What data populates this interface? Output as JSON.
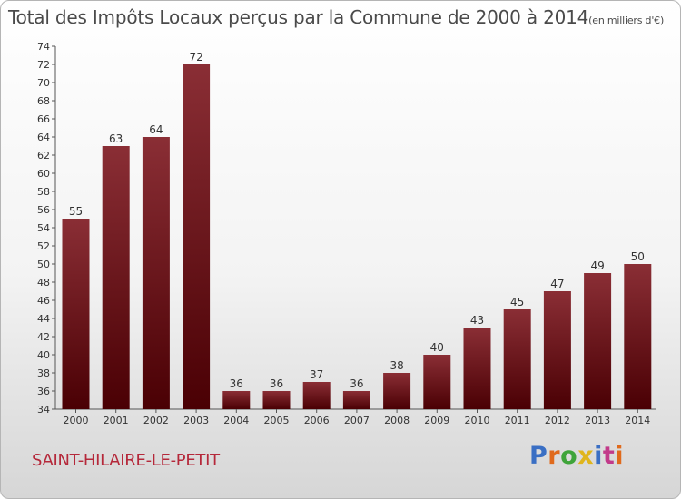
{
  "title": "Total des Impôts Locaux perçus par la Commune de 2000 à 2014",
  "title_unit": "(en milliers d'€)",
  "commune": "SAINT-HILAIRE-LE-PETIT",
  "logo": {
    "letters": [
      "P",
      "r",
      "o",
      "x",
      "i",
      "t",
      "i"
    ],
    "colors": [
      "#3a6fc4",
      "#e06a1c",
      "#3fa43a",
      "#e0b51c",
      "#3a6fc4",
      "#c23a8a",
      "#e06a1c"
    ]
  },
  "colors": {
    "bar_top": "#8a2e35",
    "bar_bottom": "#4a0004"
  },
  "chart_data": {
    "type": "bar",
    "title": "Total des Impôts Locaux perçus par la Commune de 2000 à 2014",
    "xlabel": "",
    "ylabel": "",
    "categories": [
      "2000",
      "2001",
      "2002",
      "2003",
      "2004",
      "2005",
      "2006",
      "2007",
      "2008",
      "2009",
      "2010",
      "2011",
      "2012",
      "2013",
      "2014"
    ],
    "values": [
      55,
      63,
      64,
      72,
      36,
      36,
      37,
      36,
      38,
      40,
      43,
      45,
      47,
      49,
      50
    ],
    "ylim": [
      34,
      74
    ],
    "yticks": [
      34,
      36,
      38,
      40,
      42,
      44,
      46,
      48,
      50,
      52,
      54,
      56,
      58,
      60,
      62,
      64,
      66,
      68,
      70,
      72,
      74
    ],
    "grid": false
  }
}
